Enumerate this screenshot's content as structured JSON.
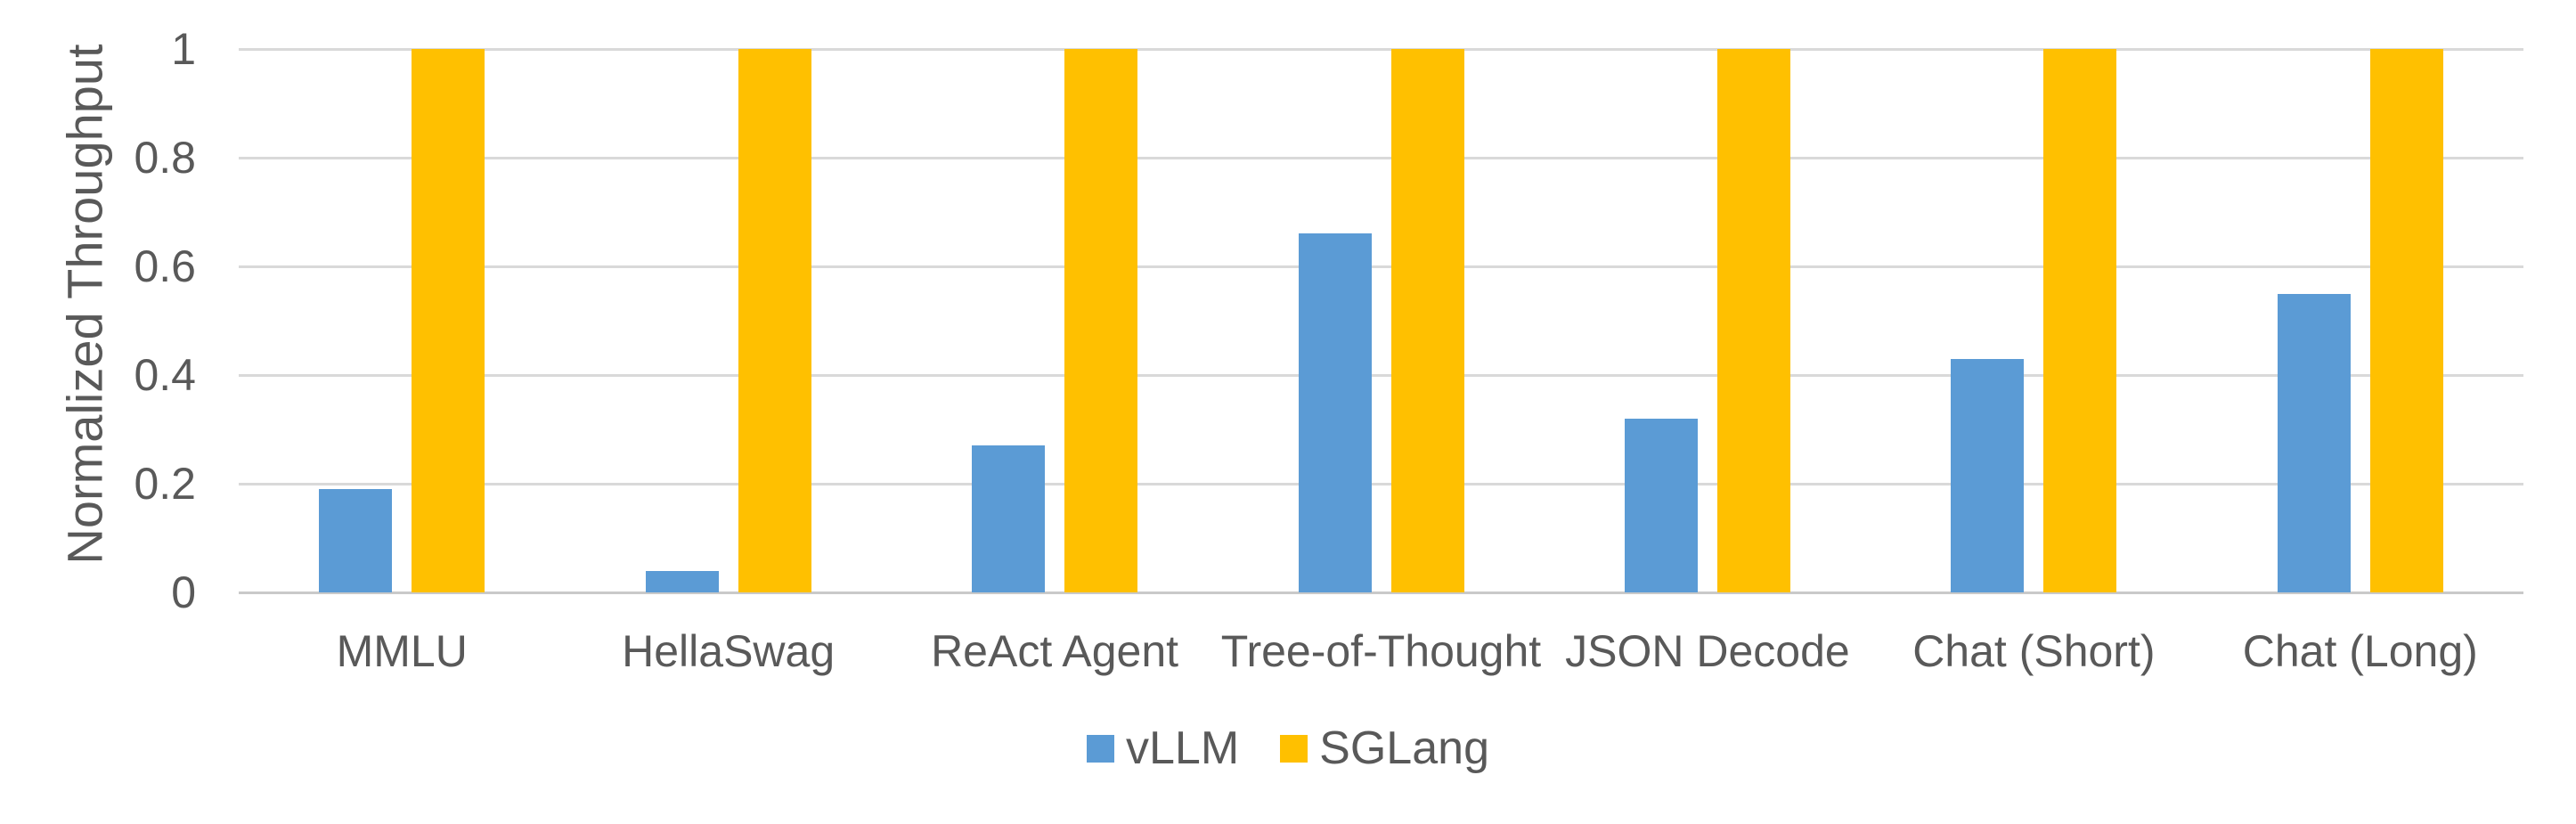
{
  "chart_data": {
    "type": "bar",
    "title": "",
    "xlabel": "",
    "ylabel": "Normalized Throughput",
    "ylim": [
      0,
      1
    ],
    "ytick_values": [
      0,
      0.2,
      0.4,
      0.6,
      0.8,
      1
    ],
    "yticks": [
      "0",
      "0.2",
      "0.4",
      "0.6",
      "0.8",
      "1"
    ],
    "grid": "horizontal",
    "legend_position": "bottom-center",
    "categories": [
      "MMLU",
      "HellaSwag",
      "ReAct Agent",
      "Tree-of-Thought",
      "JSON Decode",
      "Chat (Short)",
      "Chat (Long)"
    ],
    "series": [
      {
        "name": "vLLM",
        "color": "#5B9BD5",
        "values": [
          0.19,
          0.04,
          0.27,
          0.66,
          0.32,
          0.43,
          0.55
        ]
      },
      {
        "name": "SGLang",
        "color": "#FFC000",
        "values": [
          1,
          1,
          1,
          1,
          1,
          1,
          1
        ]
      }
    ]
  },
  "colors": {
    "vllm_blue": "#5B9BD5",
    "sglang_yellow": "#FFC000",
    "gridline_gray": "#D9D9D9",
    "axis_text_gray": "#595959"
  }
}
